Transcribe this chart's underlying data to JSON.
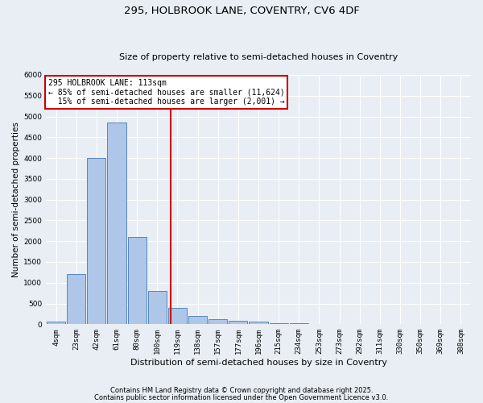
{
  "title1": "295, HOLBROOK LANE, COVENTRY, CV6 4DF",
  "title2": "Size of property relative to semi-detached houses in Coventry",
  "xlabel": "Distribution of semi-detached houses by size in Coventry",
  "ylabel": "Number of semi-detached properties",
  "bar_labels": [
    "4sqm",
    "23sqm",
    "42sqm",
    "61sqm",
    "80sqm",
    "100sqm",
    "119sqm",
    "138sqm",
    "157sqm",
    "177sqm",
    "196sqm",
    "215sqm",
    "234sqm",
    "253sqm",
    "273sqm",
    "292sqm",
    "311sqm",
    "330sqm",
    "350sqm",
    "369sqm",
    "388sqm"
  ],
  "bar_values": [
    70,
    1200,
    4000,
    4850,
    2100,
    800,
    390,
    210,
    130,
    80,
    55,
    35,
    20,
    10,
    5,
    3,
    2,
    1,
    1,
    0,
    0
  ],
  "bar_color": "#aec6e8",
  "bar_edgecolor": "#5588bb",
  "property_label": "295 HOLBROOK LANE: 113sqm",
  "pct_smaller": 85,
  "num_smaller": "11,624",
  "pct_larger": 15,
  "num_larger": "2,001",
  "vline_color": "#cc0000",
  "vline_x": 5.65,
  "ylim": [
    0,
    6000
  ],
  "yticks": [
    0,
    500,
    1000,
    1500,
    2000,
    2500,
    3000,
    3500,
    4000,
    4500,
    5000,
    5500,
    6000
  ],
  "footnote1": "Contains HM Land Registry data © Crown copyright and database right 2025.",
  "footnote2": "Contains public sector information licensed under the Open Government Licence v3.0.",
  "bg_color": "#e8eef4",
  "grid_color": "#ffffff",
  "title_fontsize": 9.5,
  "subtitle_fontsize": 8,
  "ylabel_fontsize": 7.5,
  "xlabel_fontsize": 8,
  "tick_fontsize": 6.5,
  "annot_fontsize": 7,
  "footnote_fontsize": 6
}
